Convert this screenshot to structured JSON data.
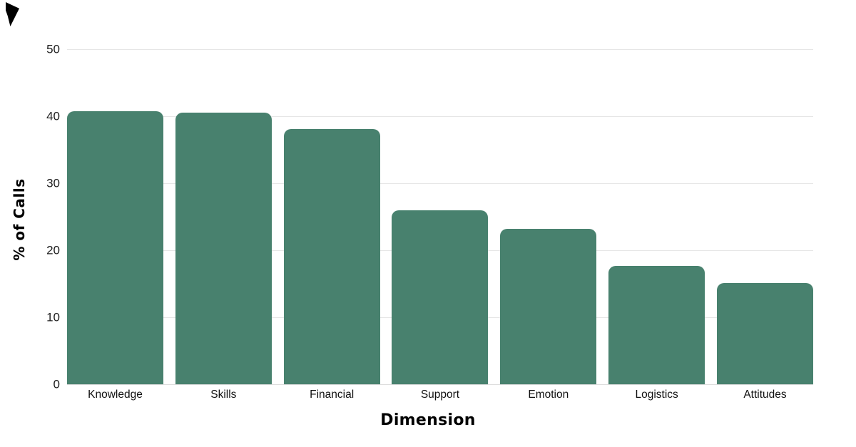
{
  "chart_data": {
    "type": "bar",
    "title": "",
    "categories": [
      "Knowledge",
      "Skills",
      "Financial",
      "Support",
      "Emotion",
      "Logistics",
      "Attitudes"
    ],
    "values": [
      40.7,
      40.5,
      38.1,
      26.0,
      23.2,
      17.7,
      15.1
    ],
    "xlabel": "Dimension",
    "ylabel": "% of Calls",
    "ylim": [
      0,
      50
    ],
    "yticks": [
      0,
      10,
      20,
      30,
      40,
      50
    ],
    "grid": "horizontal-gridlines-on",
    "legend": "none",
    "colors": {
      "bar": "#48816E",
      "gridline": "#E6E6E6",
      "baseline": "#DCDCDC",
      "tick_label": "#1E1E1E",
      "category_label": "#111111",
      "axis_title": "#000000",
      "background": "#FFFFFF",
      "corner_mark": "#000000"
    }
  },
  "icons": {
    "corner_mark": "black-angular-corner-mark"
  }
}
